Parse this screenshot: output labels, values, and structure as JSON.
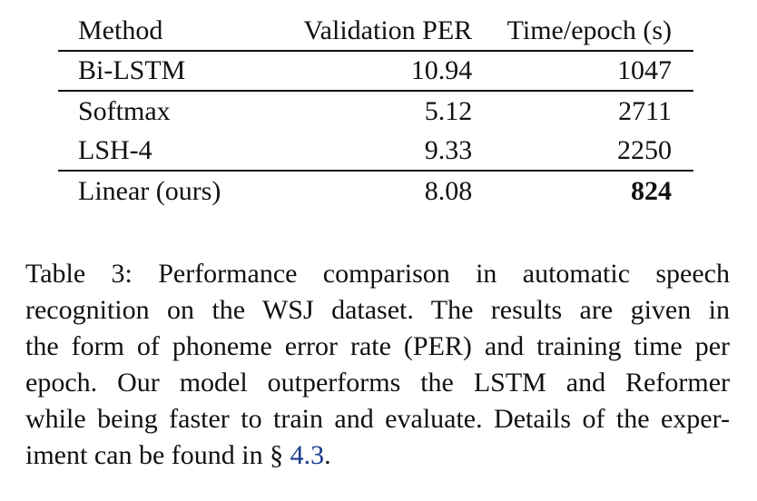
{
  "table": {
    "headers": [
      "Method",
      "Validation PER",
      "Time/epoch (s)"
    ],
    "rows": [
      {
        "method": "Bi-LSTM",
        "per": "10.94",
        "time": "1047",
        "time_bold": false
      },
      {
        "method": "Softmax",
        "per": "5.12",
        "time": "2711",
        "time_bold": false
      },
      {
        "method": "LSH-4",
        "per": "9.33",
        "time": "2250",
        "time_bold": false
      },
      {
        "method": "Linear (ours)",
        "per": "8.08",
        "time": "824",
        "time_bold": true
      }
    ]
  },
  "caption": {
    "lines": [
      "Table 3:  Performance comparison in automatic speech",
      "recognition on the WSJ dataset.  The results are given in",
      "the form of phoneme error rate (PER) and training time per",
      "epoch.  Our model outperforms the LSTM and Reformer",
      "while being faster to train and evaluate. Details of the exper-"
    ],
    "last_line_prefix": "iment can be found in ",
    "section_symbol": "§",
    "ref_text": "4.3",
    "last_line_suffix": "."
  },
  "colors": {
    "text": "#111111",
    "link": "#1a3a8c"
  }
}
